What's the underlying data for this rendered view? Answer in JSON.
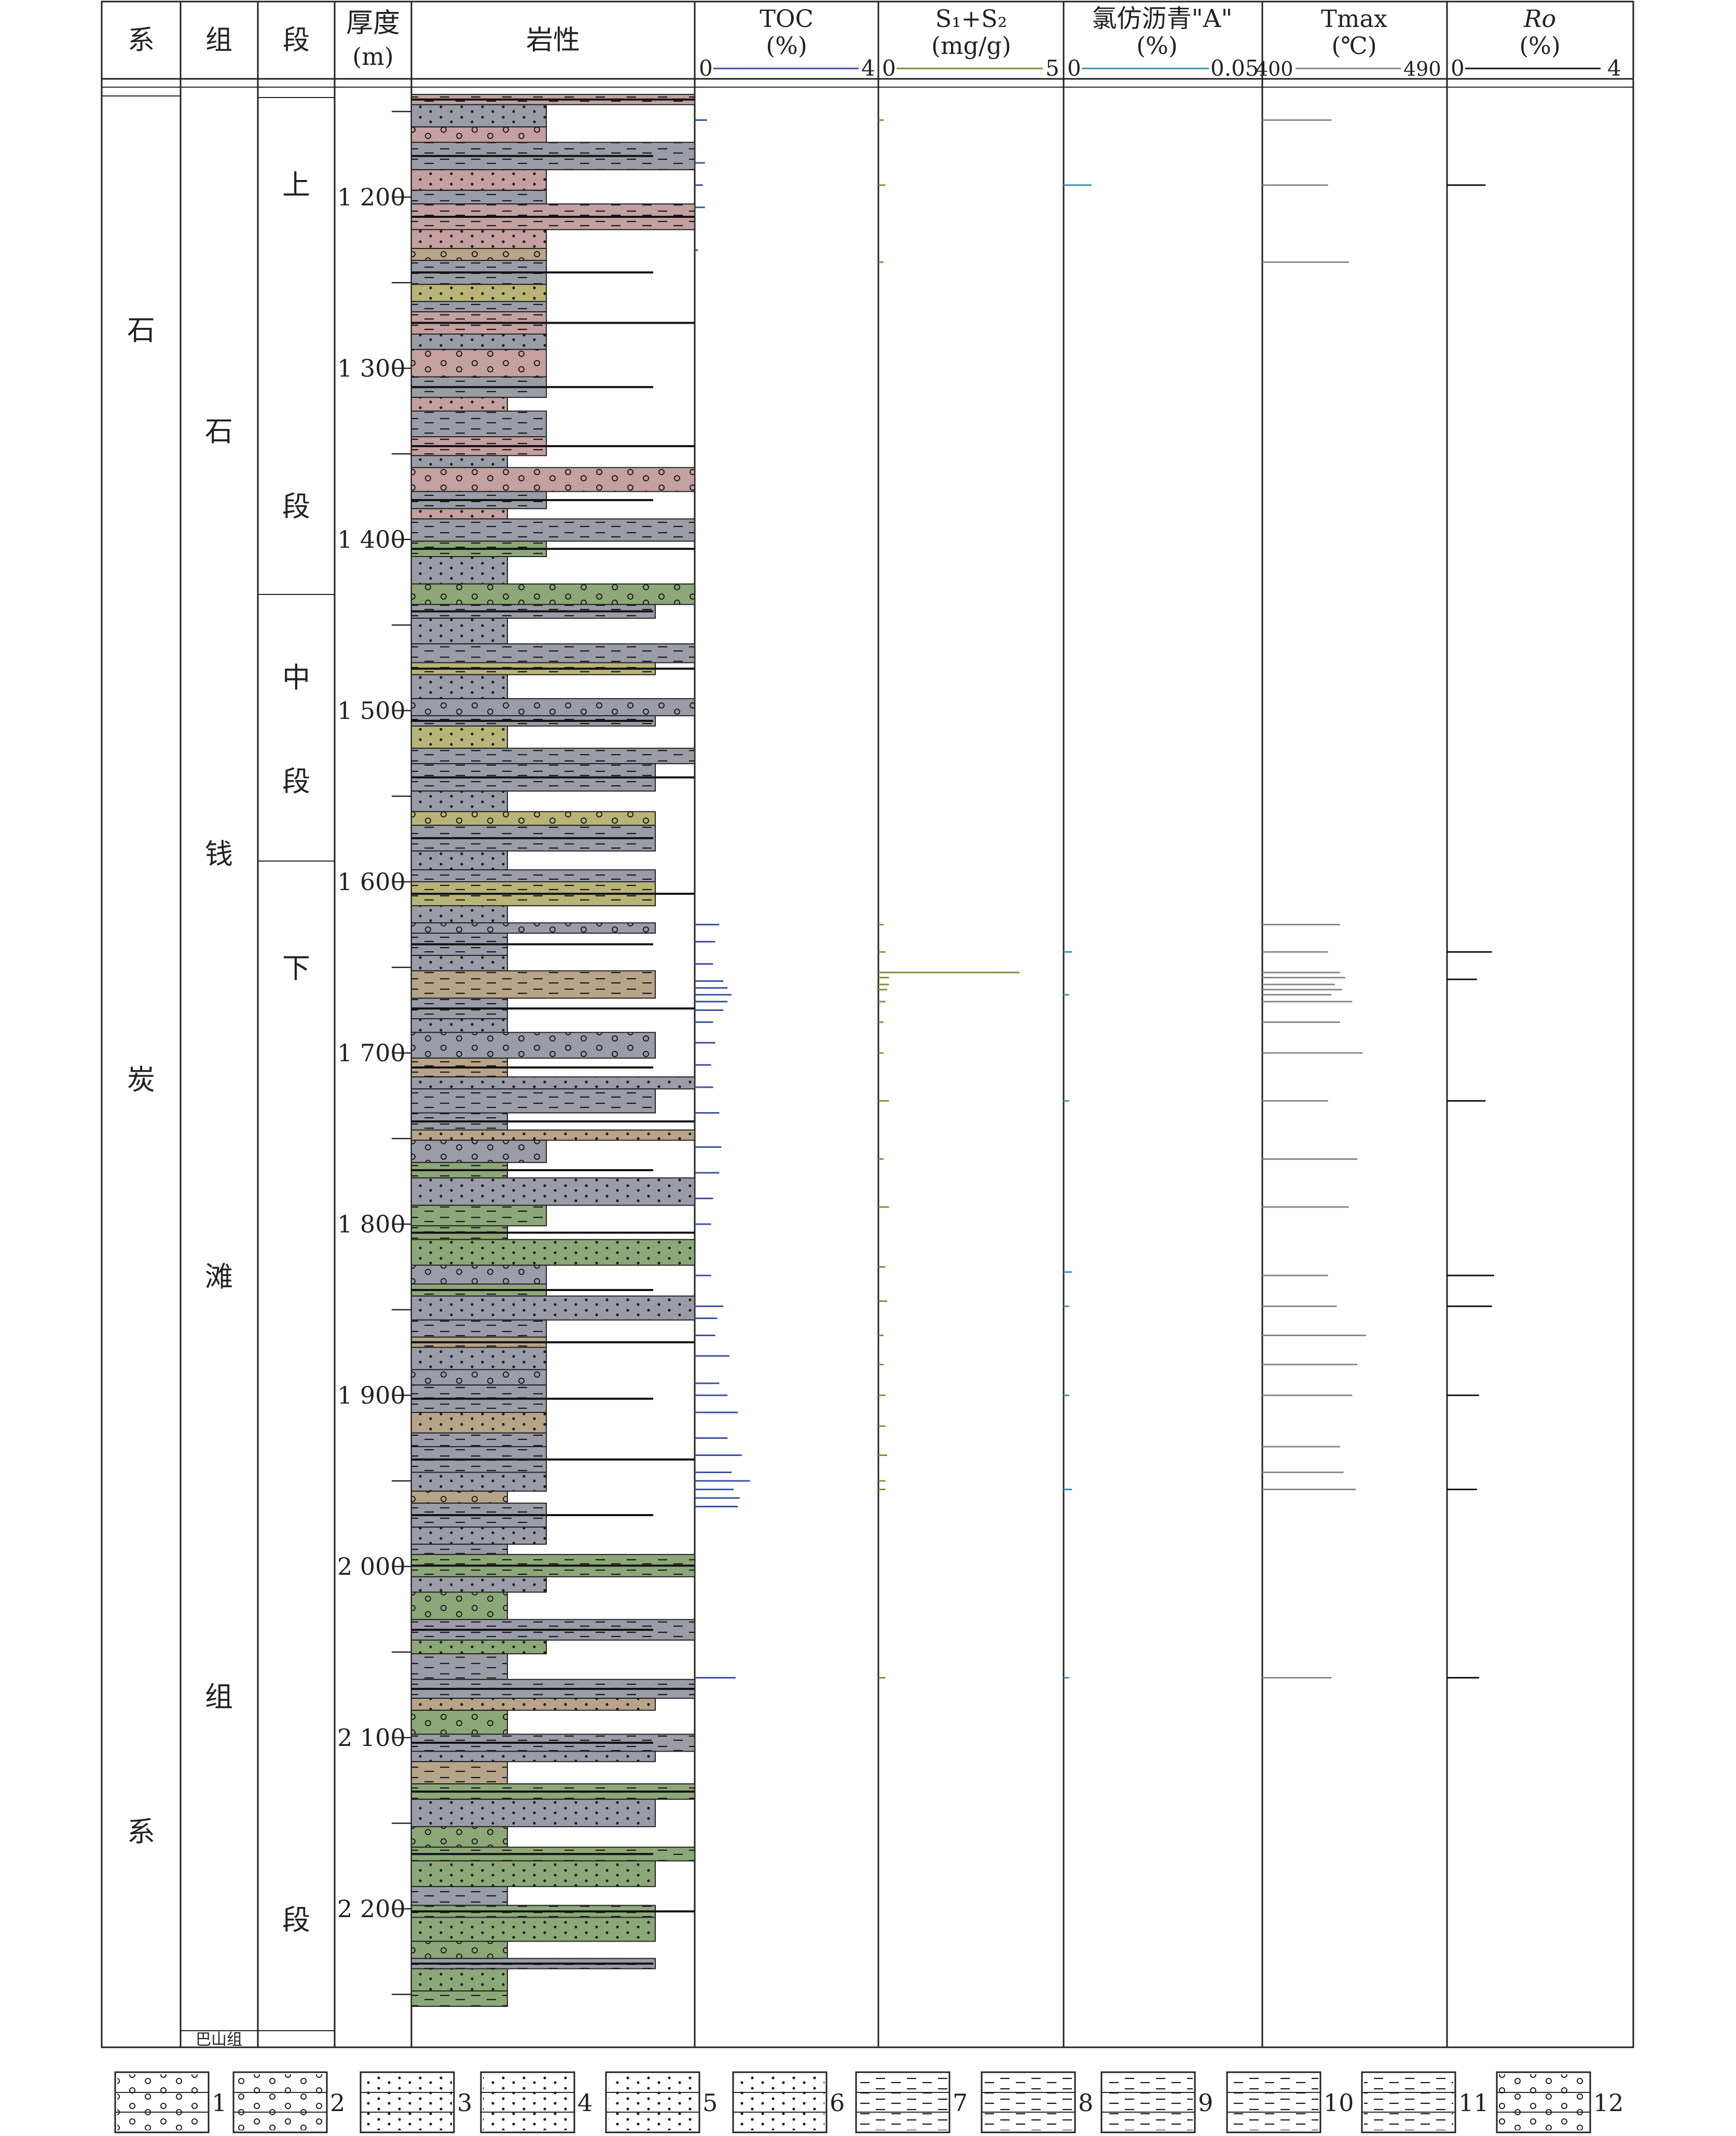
{
  "headers": {
    "system": "系",
    "formation": "组",
    "member": "段",
    "thickness": "厚度",
    "thickness_unit": "(m)",
    "lithology": "岩性",
    "toc": "TOC",
    "toc_unit": "(%)",
    "toc_min": "0",
    "toc_max": "4",
    "s1s2": "S₁+S₂",
    "s1s2_unit": "(mg/g)",
    "s1s2_min": "0",
    "s1s2_max": "5",
    "bitumen": "氯仿沥青\"A\"",
    "bitumen_unit": "(%)",
    "bitumen_min": "0",
    "bitumen_max": "0.05",
    "tmax": "Tmax",
    "tmax_unit": "(℃)",
    "tmax_min": "400",
    "tmax_max": "490",
    "ro": "Ro",
    "ro_unit": "(%)",
    "ro_min": "0",
    "ro_max": "4"
  },
  "strat": {
    "system_chars": [
      "石",
      "炭",
      "系"
    ],
    "formation_chars": [
      "石",
      "钱",
      "滩",
      "组"
    ],
    "upper_member": [
      "上",
      "段"
    ],
    "middle_member": [
      "中",
      "段"
    ],
    "lower_member": [
      "下",
      "段"
    ],
    "bottom_formation": "巴山组"
  },
  "depth_labels": [
    "1 200",
    "1 300",
    "1 400",
    "1 500",
    "1 600",
    "1 700",
    "1 800",
    "1 900",
    "2 000",
    "2 100",
    "2 200"
  ],
  "legend_numbers": [
    "1",
    "2",
    "3",
    "4",
    "5",
    "6",
    "7",
    "8",
    "9",
    "10",
    "11",
    "12"
  ],
  "colors": {
    "toc": "#3a4fa0",
    "s1s2": "#8a8a3a",
    "bitumen": "#3a8fb0",
    "tmax": "#888888",
    "ro": "#111111",
    "grey_litho": "#9a9ca8",
    "green_litho": "#8ca878",
    "red_litho": "#c4a0a0",
    "tan_litho": "#b8a488",
    "olive_litho": "#b8b478"
  },
  "chart_data": {
    "type": "table",
    "depth_range": [
      1140,
      2260
    ],
    "toc": {
      "depth": [
        1155,
        1180,
        1193,
        1206,
        1231,
        1625,
        1635,
        1648,
        1658,
        1662,
        1666,
        1670,
        1675,
        1682,
        1694,
        1707,
        1720,
        1735,
        1755,
        1770,
        1785,
        1800,
        1830,
        1848,
        1855,
        1865,
        1877,
        1893,
        1900,
        1910,
        1925,
        1935,
        1945,
        1950,
        1955,
        1960,
        1965,
        2065
      ],
      "value": [
        0.3,
        0.25,
        0.2,
        0.25,
        0.05,
        0.6,
        0.5,
        0.45,
        0.7,
        0.8,
        0.9,
        0.8,
        0.7,
        0.45,
        0.5,
        0.4,
        0.45,
        0.6,
        0.65,
        0.6,
        0.45,
        0.4,
        0.4,
        0.7,
        0.55,
        0.5,
        0.85,
        0.6,
        0.8,
        1.05,
        0.8,
        1.15,
        0.9,
        1.35,
        0.95,
        1.1,
        1.05,
        1.0
      ]
    },
    "s1s2": {
      "depth": [
        1155,
        1193,
        1238,
        1625,
        1641,
        1653,
        1656,
        1660,
        1663,
        1670,
        1682,
        1700,
        1728,
        1762,
        1790,
        1825,
        1845,
        1865,
        1882,
        1900,
        1918,
        1935,
        1950,
        1955,
        2065
      ],
      "value": [
        0.15,
        0.2,
        0.15,
        0.15,
        0.2,
        4.0,
        0.3,
        0.3,
        0.25,
        0.2,
        0.15,
        0.15,
        0.3,
        0.15,
        0.3,
        0.2,
        0.25,
        0.15,
        0.15,
        0.2,
        0.2,
        0.25,
        0.2,
        0.2,
        0.2
      ]
    },
    "bitumen": {
      "depth": [
        1193,
        1641,
        1666,
        1728,
        1828,
        1848,
        1900,
        1955,
        2065
      ],
      "value": [
        0.01,
        0.003,
        0.002,
        0.002,
        0.003,
        0.002,
        0.002,
        0.003,
        0.002
      ]
    },
    "tmax": {
      "depth": [
        1155,
        1193,
        1238,
        1625,
        1641,
        1653,
        1656,
        1660,
        1663,
        1666,
        1670,
        1682,
        1700,
        1728,
        1762,
        1790,
        1830,
        1848,
        1865,
        1882,
        1900,
        1930,
        1945,
        1955,
        2065
      ],
      "value": [
        440,
        438,
        450,
        445,
        438,
        445,
        448,
        442,
        446,
        440,
        452,
        445,
        458,
        438,
        455,
        450,
        438,
        443,
        460,
        455,
        452,
        445,
        447,
        454,
        440
      ]
    },
    "ro": {
      "depth": [
        1193,
        1641,
        1657,
        1728,
        1830,
        1848,
        1900,
        1955,
        2065
      ],
      "value": [
        0.9,
        1.05,
        0.7,
        0.9,
        1.1,
        1.05,
        0.75,
        0.7,
        0.75
      ]
    }
  }
}
